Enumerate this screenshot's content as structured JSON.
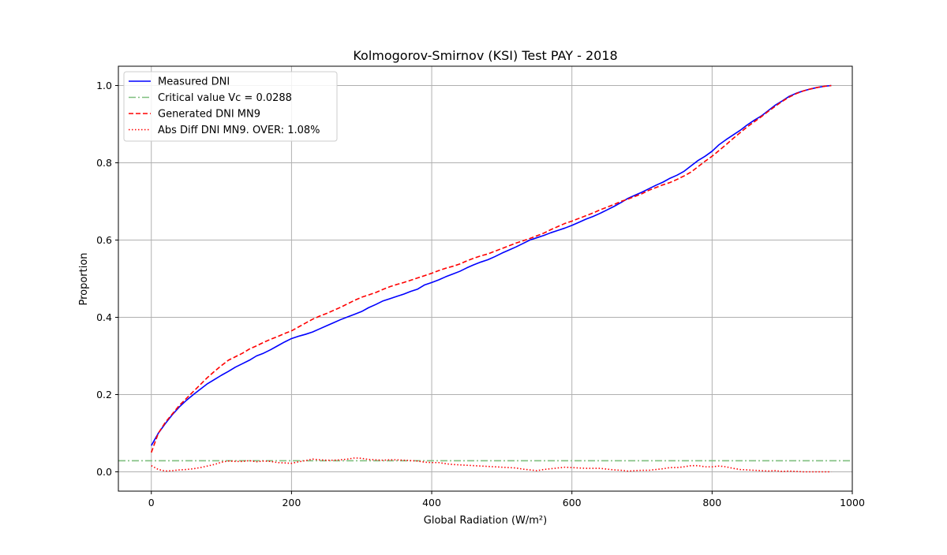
{
  "chart_data": {
    "type": "line",
    "title": "Kolmogorov-Smirnov (KSI) Test PAY - 2018",
    "xlabel": "Global Radiation (W/m²)",
    "ylabel": "Proportion",
    "xlim": [
      -47,
      1000
    ],
    "ylim": [
      -0.05,
      1.05
    ],
    "xticks": [
      0,
      200,
      400,
      600,
      800,
      1000
    ],
    "xtick_labels": [
      "0",
      "200",
      "400",
      "600",
      "800",
      "1000"
    ],
    "yticks": [
      0.0,
      0.2,
      0.4,
      0.6,
      0.8,
      1.0
    ],
    "ytick_labels": [
      "0.0",
      "0.2",
      "0.4",
      "0.6",
      "0.8",
      "1.0"
    ],
    "grid": true,
    "legend_position": "upper-left",
    "series": [
      {
        "name": "Measured DNI",
        "color": "#0000ff",
        "style": "solid",
        "x": [
          0,
          10,
          20,
          30,
          40,
          50,
          60,
          70,
          80,
          90,
          100,
          110,
          120,
          130,
          140,
          150,
          160,
          170,
          180,
          190,
          200,
          210,
          220,
          230,
          240,
          250,
          260,
          270,
          280,
          290,
          300,
          310,
          320,
          330,
          340,
          350,
          360,
          370,
          380,
          390,
          400,
          410,
          420,
          430,
          440,
          450,
          460,
          470,
          480,
          490,
          500,
          510,
          520,
          530,
          540,
          550,
          560,
          570,
          580,
          590,
          600,
          610,
          620,
          630,
          640,
          650,
          660,
          670,
          680,
          690,
          700,
          710,
          720,
          730,
          740,
          750,
          760,
          770,
          780,
          790,
          800,
          810,
          820,
          830,
          840,
          850,
          860,
          870,
          880,
          890,
          900,
          910,
          920,
          930,
          940,
          950,
          960,
          970
        ],
        "y": [
          0.068,
          0.1,
          0.125,
          0.148,
          0.168,
          0.185,
          0.2,
          0.214,
          0.228,
          0.239,
          0.25,
          0.26,
          0.271,
          0.28,
          0.289,
          0.3,
          0.307,
          0.316,
          0.326,
          0.336,
          0.345,
          0.351,
          0.356,
          0.362,
          0.37,
          0.378,
          0.386,
          0.394,
          0.401,
          0.408,
          0.415,
          0.425,
          0.433,
          0.442,
          0.448,
          0.454,
          0.46,
          0.467,
          0.473,
          0.484,
          0.49,
          0.497,
          0.505,
          0.512,
          0.519,
          0.528,
          0.536,
          0.543,
          0.549,
          0.557,
          0.566,
          0.574,
          0.582,
          0.591,
          0.6,
          0.606,
          0.612,
          0.619,
          0.625,
          0.631,
          0.638,
          0.646,
          0.654,
          0.661,
          0.669,
          0.678,
          0.687,
          0.697,
          0.708,
          0.716,
          0.724,
          0.733,
          0.742,
          0.75,
          0.76,
          0.768,
          0.778,
          0.792,
          0.806,
          0.817,
          0.83,
          0.847,
          0.86,
          0.872,
          0.884,
          0.898,
          0.91,
          0.921,
          0.935,
          0.949,
          0.96,
          0.972,
          0.98,
          0.986,
          0.991,
          0.995,
          0.998,
          1.0
        ]
      },
      {
        "name": "Critical value Vc = 0.0288",
        "color": "#7fbf7f",
        "style": "dashdot",
        "x": [
          -47,
          1000
        ],
        "y": [
          0.0288,
          0.0288
        ]
      },
      {
        "name": "Generated DNI MN9",
        "color": "#ff0000",
        "style": "dashed",
        "x": [
          0,
          10,
          20,
          30,
          40,
          50,
          60,
          70,
          80,
          90,
          100,
          110,
          120,
          130,
          140,
          150,
          160,
          170,
          180,
          190,
          200,
          210,
          220,
          230,
          240,
          250,
          260,
          270,
          280,
          290,
          300,
          310,
          320,
          330,
          340,
          350,
          360,
          370,
          380,
          390,
          400,
          410,
          420,
          430,
          440,
          450,
          460,
          470,
          480,
          490,
          500,
          510,
          520,
          530,
          540,
          550,
          560,
          570,
          580,
          590,
          600,
          610,
          620,
          630,
          640,
          650,
          660,
          670,
          680,
          690,
          700,
          710,
          720,
          730,
          740,
          750,
          760,
          770,
          780,
          790,
          800,
          810,
          820,
          830,
          840,
          850,
          860,
          870,
          880,
          890,
          900,
          910,
          920,
          930,
          940,
          950,
          960,
          970
        ],
        "y": [
          0.05,
          0.1,
          0.128,
          0.15,
          0.172,
          0.19,
          0.208,
          0.226,
          0.244,
          0.26,
          0.275,
          0.289,
          0.298,
          0.307,
          0.318,
          0.326,
          0.335,
          0.343,
          0.35,
          0.358,
          0.365,
          0.375,
          0.385,
          0.395,
          0.403,
          0.41,
          0.418,
          0.426,
          0.435,
          0.444,
          0.452,
          0.458,
          0.464,
          0.472,
          0.479,
          0.485,
          0.49,
          0.496,
          0.502,
          0.508,
          0.514,
          0.521,
          0.527,
          0.532,
          0.538,
          0.546,
          0.553,
          0.559,
          0.564,
          0.571,
          0.578,
          0.585,
          0.592,
          0.598,
          0.604,
          0.611,
          0.618,
          0.627,
          0.635,
          0.643,
          0.649,
          0.656,
          0.663,
          0.67,
          0.678,
          0.685,
          0.692,
          0.7,
          0.706,
          0.713,
          0.72,
          0.729,
          0.736,
          0.743,
          0.749,
          0.757,
          0.766,
          0.776,
          0.79,
          0.804,
          0.817,
          0.832,
          0.847,
          0.863,
          0.878,
          0.893,
          0.906,
          0.919,
          0.933,
          0.946,
          0.959,
          0.97,
          0.979,
          0.986,
          0.991,
          0.995,
          0.998,
          1.0
        ]
      },
      {
        "name": "Abs Diff DNI MN9. OVER: 1.08%",
        "color": "#ff0000",
        "style": "dotted",
        "x": [
          0,
          10,
          20,
          30,
          40,
          50,
          60,
          70,
          80,
          90,
          100,
          110,
          120,
          130,
          140,
          150,
          160,
          170,
          180,
          190,
          200,
          210,
          220,
          230,
          240,
          250,
          260,
          270,
          280,
          290,
          300,
          310,
          320,
          330,
          340,
          350,
          360,
          370,
          380,
          390,
          400,
          410,
          420,
          430,
          440,
          450,
          460,
          470,
          480,
          490,
          500,
          510,
          520,
          530,
          540,
          550,
          560,
          570,
          580,
          590,
          600,
          610,
          620,
          630,
          640,
          650,
          660,
          670,
          680,
          690,
          700,
          710,
          720,
          730,
          740,
          750,
          760,
          770,
          780,
          790,
          800,
          810,
          820,
          830,
          840,
          850,
          860,
          870,
          880,
          890,
          900,
          910,
          920,
          930,
          940,
          950,
          960,
          970
        ],
        "y": [
          0.016,
          0.006,
          0.002,
          0.003,
          0.005,
          0.006,
          0.008,
          0.011,
          0.015,
          0.019,
          0.025,
          0.028,
          0.027,
          0.027,
          0.029,
          0.026,
          0.028,
          0.027,
          0.024,
          0.023,
          0.022,
          0.026,
          0.029,
          0.033,
          0.031,
          0.03,
          0.03,
          0.031,
          0.033,
          0.036,
          0.035,
          0.032,
          0.031,
          0.03,
          0.031,
          0.031,
          0.03,
          0.029,
          0.028,
          0.025,
          0.024,
          0.024,
          0.021,
          0.019,
          0.018,
          0.017,
          0.016,
          0.015,
          0.014,
          0.013,
          0.012,
          0.011,
          0.01,
          0.007,
          0.005,
          0.003,
          0.006,
          0.008,
          0.01,
          0.012,
          0.011,
          0.01,
          0.009,
          0.009,
          0.009,
          0.007,
          0.005,
          0.004,
          0.002,
          0.003,
          0.004,
          0.004,
          0.006,
          0.008,
          0.011,
          0.011,
          0.013,
          0.016,
          0.016,
          0.013,
          0.013,
          0.015,
          0.013,
          0.009,
          0.006,
          0.005,
          0.004,
          0.003,
          0.002,
          0.003,
          0.001,
          0.002,
          0.001,
          0.0,
          0.0,
          0.0,
          0.0,
          0.0
        ]
      }
    ]
  }
}
